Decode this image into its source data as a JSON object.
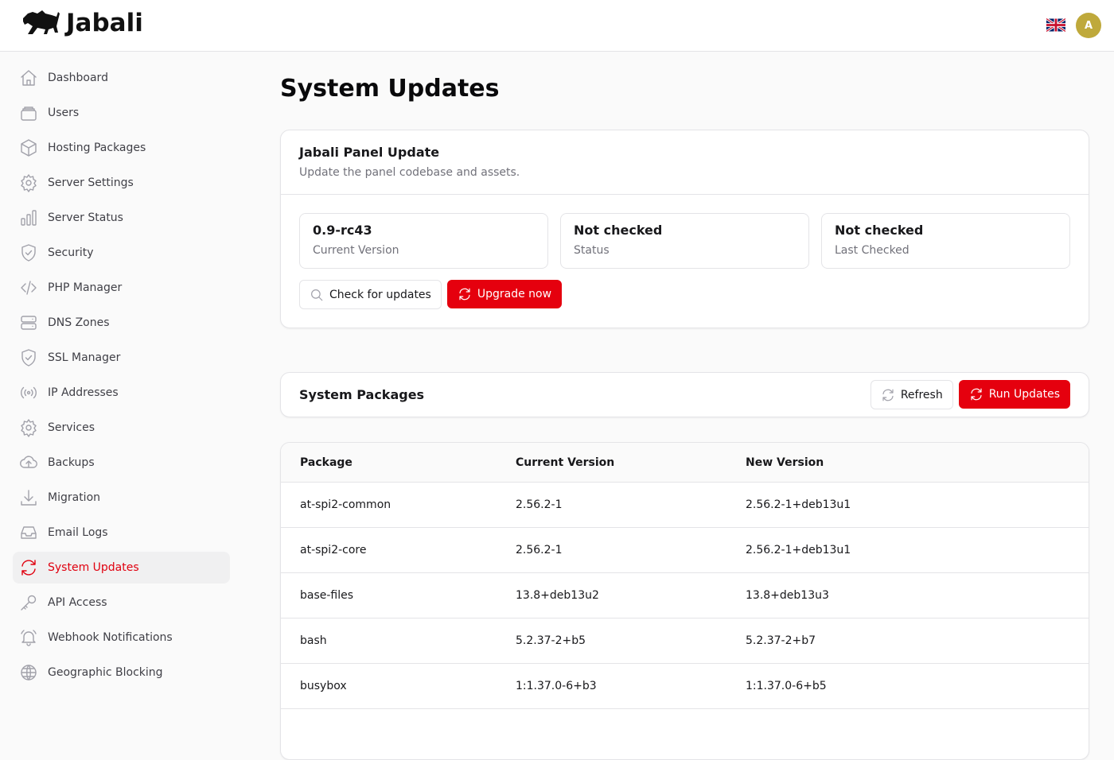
{
  "header": {
    "brand": "Jabali",
    "language_flag": "uk-flag-icon",
    "avatar_initial": "A",
    "avatar_color": "#bfa93b"
  },
  "sidebar": {
    "items": [
      {
        "label": "Dashboard",
        "icon": "home"
      },
      {
        "label": "Users",
        "icon": "users"
      },
      {
        "label": "Hosting Packages",
        "icon": "cube"
      },
      {
        "label": "Server Settings",
        "icon": "gear"
      },
      {
        "label": "Server Status",
        "icon": "chart"
      },
      {
        "label": "Security",
        "icon": "shield"
      },
      {
        "label": "PHP Manager",
        "icon": "code"
      },
      {
        "label": "DNS Zones",
        "icon": "server"
      },
      {
        "label": "SSL Manager",
        "icon": "shield"
      },
      {
        "label": "IP Addresses",
        "icon": "signal"
      },
      {
        "label": "Services",
        "icon": "gear"
      },
      {
        "label": "Backups",
        "icon": "cloud-upload"
      },
      {
        "label": "Migration",
        "icon": "download"
      },
      {
        "label": "Email Logs",
        "icon": "inbox"
      },
      {
        "label": "System Updates",
        "icon": "refresh",
        "active": true
      },
      {
        "label": "API Access",
        "icon": "key"
      },
      {
        "label": "Webhook Notifications",
        "icon": "bell"
      },
      {
        "label": "Geographic Blocking",
        "icon": "globe"
      }
    ]
  },
  "page": {
    "title": "System Updates"
  },
  "panel_update": {
    "title": "Jabali Panel Update",
    "subtitle": "Update the panel codebase and assets.",
    "stats": [
      {
        "value": "0.9-rc43",
        "label": "Current Version"
      },
      {
        "value": "Not checked",
        "label": "Status"
      },
      {
        "value": "Not checked",
        "label": "Last Checked"
      }
    ],
    "check_label": "Check for updates",
    "upgrade_label": "Upgrade now"
  },
  "packages": {
    "title": "System Packages",
    "refresh_label": "Refresh",
    "run_label": "Run Updates",
    "columns": [
      "Package",
      "Current Version",
      "New Version"
    ],
    "rows": [
      [
        "at-spi2-common",
        "2.56.2-1",
        "2.56.2-1+deb13u1"
      ],
      [
        "at-spi2-core",
        "2.56.2-1",
        "2.56.2-1+deb13u1"
      ],
      [
        "base-files",
        "13.8+deb13u2",
        "13.8+deb13u3"
      ],
      [
        "bash",
        "5.2.37-2+b5",
        "5.2.37-2+b7"
      ],
      [
        "busybox",
        "1:1.37.0-6+b3",
        "1:1.37.0-6+b5"
      ]
    ]
  },
  "colors": {
    "accent": "#e5000e"
  }
}
